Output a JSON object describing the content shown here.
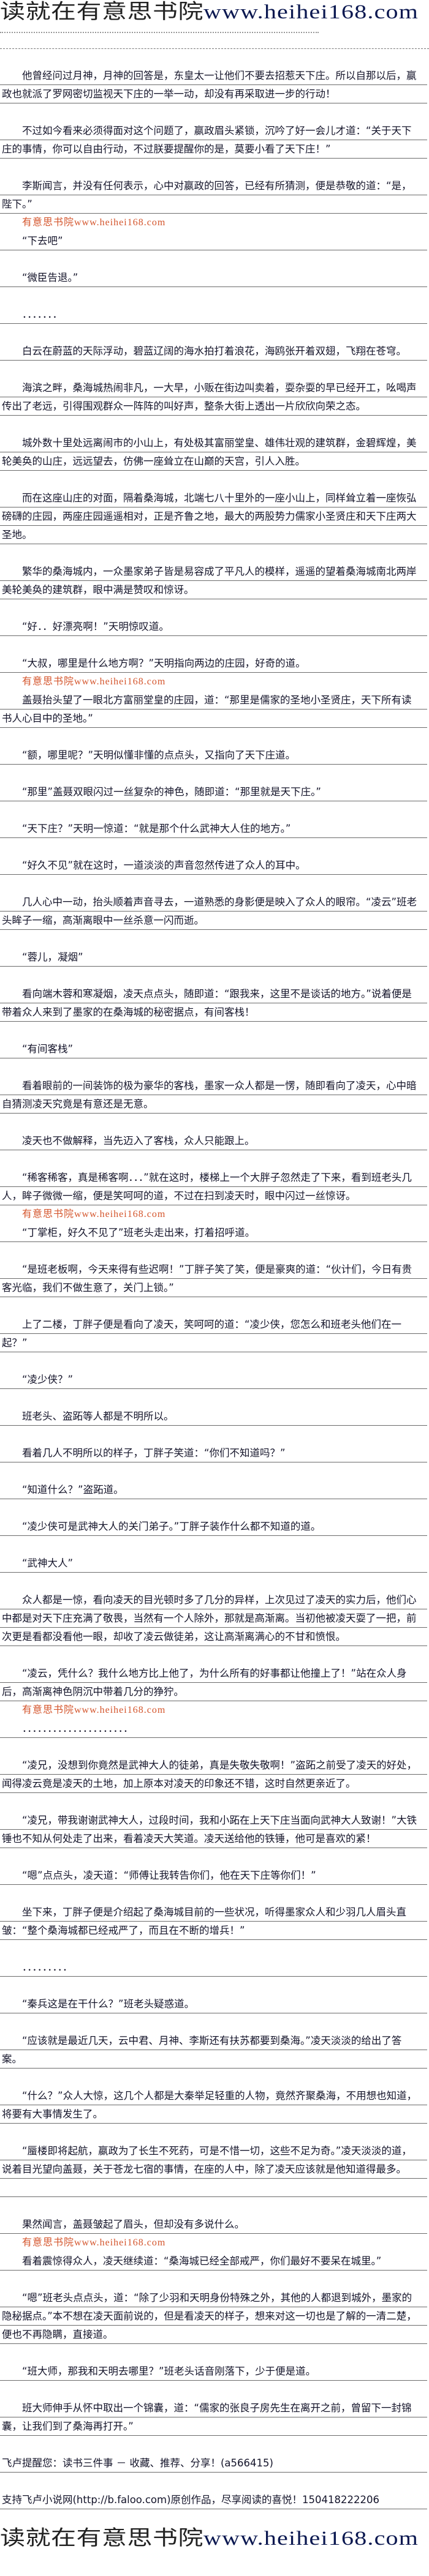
{
  "site_title": {
    "cn": "读就在有意思书院",
    "en": "www.heihei168.com"
  },
  "watermark_text": "有意思书院www.heihei168.com",
  "watermark_color": "#d4552c",
  "paragraphs": [
    "他曾经问过月神，月神的回答是，东皇太一让他们不要去招惹天下庄。所以自那以后，嬴政也就派了罗网密切监视天下庄的一举一动，却没有再采取进一步的行动！",
    "不过如今看来必须得面对这个问题了，嬴政眉头紧锁，沉吟了好一会儿才道：“关于天下庄的事情，你可以自由行动，不过朕要提醒你的是，莫要小看了天下庄！”",
    "李斯闻言，并没有任何表示，心中对嬴政的回答，已经有所猜测，便是恭敬的道：“是，陛下。”",
    "“下去吧”",
    "“微臣告退。”",
    "．．．．．．．",
    "白云在蔚蓝的天际浮动，碧蓝辽阔的海水拍打着浪花，海鸥张开着双翅，飞翔在苍穹。",
    "海滨之畔，桑海城热闹非凡，一大早，小贩在街边叫卖着，耍杂耍的早已经开工，吆喝声传出了老远，引得围观群众一阵阵的叫好声，整条大街上透出一片欣欣向荣之态。",
    "城外数十里处远离闹市的小山上，有处极其富丽堂皇、雄伟壮观的建筑群，金碧辉煌，美轮美奂的山庄，远远望去，仿佛一座耸立在山巅的天宫，引人入胜。",
    "而在这座山庄的对面，隔着桑海城，北端七八十里外的一座小山上，同样耸立着一座恢弘磅礴的庄园，两座庄园遥遥相对，正是齐鲁之地，最大的两股势力儒家小圣贤庄和天下庄两大圣地。",
    "繁华的桑海城内，一众墨家弟子皆是易容成了平凡人的模样，遥遥的望着桑海城南北两岸美轮美奂的建筑群，眼中满是赞叹和惊讶。",
    "“好．．好漂亮啊！”天明惊叹道。",
    "“大叔，哪里是什么地方啊？”天明指向两边的庄园，好奇的道。",
    "盖聂抬头望了一眼北方富丽堂皇的庄园，道：“那里是儒家的圣地小圣贤庄，天下所有读书人心目中的圣地。”",
    "“额，哪里呢？”天明似懂非懂的点点头，又指向了天下庄道。",
    "“那里”盖聂双眼闪过一丝复杂的神色，随即道：“那里就是天下庄。”",
    "“天下庄？”天明一惊道：“就是那个什么武神大人住的地方。”",
    "“好久不见”就在这时，一道淡淡的声音忽然传进了众人的耳中。",
    "几人心中一动，抬头顺着声音寻去，一道熟悉的身影便是映入了众人的眼帘。“凌云”班老头眸子一缩，高渐离眼中一丝杀意一闪而逝。",
    "“蓉儿，凝烟”",
    "看向端木蓉和寒凝烟，凌天点点头，随即道：“跟我来，这里不是谈话的地方。”说着便是带着众人来到了墨家的在桑海城的秘密据点，有间客栈！",
    "“有间客栈”",
    "看着眼前的一间装饰的极为豪华的客栈，墨家一众人都是一愣，随即看向了凌天，心中暗自猜测凌天究竟是有意还是无意。",
    "凌天也不做解释，当先迈入了客栈，众人只能跟上。",
    "“稀客稀客，真是稀客啊．．．”就在这时，楼梯上一个大胖子忽然走了下来，看到班老头几人，眸子微微一缩，便是笑呵呵的道，不过在扫到凌天时，眼中闪过一丝惊讶。",
    "“丁掌柜，好久不见了”班老头走出来，打着招呼道。",
    "“是班老板啊，今天来得有些迟啊！”丁胖子笑了笑，便是豪爽的道：“伙计们，今日有贵客光临，我们不做生意了，关门上锁。”",
    "上了二楼，丁胖子便是看向了凌天，笑呵呵的道：“凌少侠，您怎么和班老头他们在一起？”",
    "“凌少侠？”",
    "班老头、盗跖等人都是不明所以。",
    "看着几人不明所以的样子，丁胖子笑道：“你们不知道吗？”",
    "“知道什么？”盗跖道。",
    "“凌少侠可是武神大人的关门弟子。”丁胖子装作什么都不知道的道。",
    "“武神大人”",
    "众人都是一惊，看向凌天的目光顿时多了几分的异样，上次见过了凌天的实力后，他们心中都是对天下庄充满了敬畏，当然有一个人除外，那就是高渐离。当初他被凌天耍了一把，前次更是看都没看他一眼，却收了凌云做徒弟，这让高渐离满心的不甘和愤恨。",
    "“凌云，凭什么？我什么地方比上他了，为什么所有的好事都让他撞上了！”站在众人身后，高渐离神色阴沉中带着几分的狰狞。",
    "．．．．．．．．．．．．．．．．．．．．．",
    "“凌兄，没想到你竟然是武神大人的徒弟，真是失敬失敬啊！”盗跖之前受了凌天的好处，闻得凌云竟是凌天的土地，加上原本对凌天的印象还不错，这时自然更亲近了。",
    "“凌兄，带我谢谢武神大人，过段时间，我和小跖在上天下庄当面向武神大人致谢！”大铁锤也不知从何处走了出来，看着凌天大笑道。凌天送给他的铁锤，他可是喜欢的紧！",
    "“嗯”点点头，凌天道：“师傅让我转告你们，他在天下庄等你们！”",
    "坐下来，丁胖子便是介绍起了桑海城目前的一些状况，听得墨家众人和少羽几人眉头直皱：“整个桑海城都已经戒严了，而且在不断的增兵！”",
    "．．．．．．．．．",
    "“秦兵这是在干什么？”班老头疑惑道。",
    "“应该就是最近几天，云中君、月神、李斯还有扶苏都要到桑海。”凌天淡淡的给出了答案。",
    "“什么？”众人大惊，这几个人都是大秦举足轻重的人物，竟然齐聚桑海，不用想也知道，将要有大事情发生了。",
    "“蜃楼即将起航，嬴政为了长生不死药，可是不惜一切，这些不足为奇。”凌天淡淡的道，说着目光望向盖聂，关于苍龙七宿的事情，在座的人中，除了凌天应该就是他知道得最多。",
    "",
    "果然闻言，盖聂皱起了眉头，但却没有多说什么。",
    "看着震惊得众人，凌天继续道：“桑海城已经全部戒严，你们最好不要呆在城里。”",
    "“嗯”班老头点点头，道：“除了少羽和天明身份特殊之外，其他的人都退到城外，墨家的隐秘据点。”本不想在凌天面前说的，但是看凌天的样子，想来对这一切也是了解的一清二楚，便也不再隐瞒，直接道。",
    "“班大师，那我和天明去哪里？”班老头话音刚落下，少于便是道。",
    "班大师伸手从怀中取出一个锦囊，道：“儒家的张良子房先生在离开之前，曾留下一封锦囊，让我们到了桑海再打开。”"
  ],
  "footer_notes": [
    "飞卢提醒您：读书三件事 － 收藏、推荐、分享！(a566415)",
    "支持飞卢小说网(http://b.faloo.com)原创作品，尽享阅读的喜悦！150418222206"
  ]
}
